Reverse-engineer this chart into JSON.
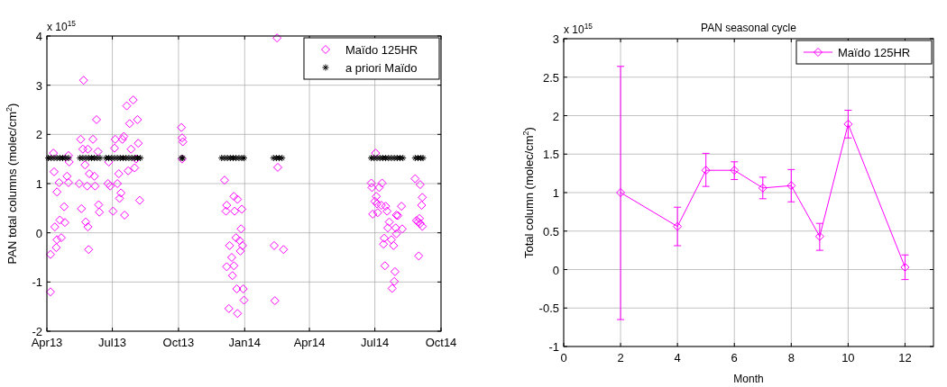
{
  "chart_data": [
    {
      "type": "scatter",
      "ylabel": "PAN total columns (molec/cm$^{2}$)",
      "annotations": [
        "x 10$^{15}$"
      ],
      "xlim": [
        "2013-04-01",
        "2014-10-01"
      ],
      "xticks": [
        {
          "value": "2013-04-01",
          "label": "Apr13"
        },
        {
          "value": "2013-07-01",
          "label": "Jul13"
        },
        {
          "value": "2013-10-01",
          "label": "Oct13"
        },
        {
          "value": "2014-01-01",
          "label": "Jan14"
        },
        {
          "value": "2014-04-01",
          "label": "Apr14"
        },
        {
          "value": "2014-07-01",
          "label": "Jul14"
        },
        {
          "value": "2014-10-01",
          "label": "Oct14"
        }
      ],
      "ylim": [
        -2,
        4
      ],
      "yticks": [
        -2,
        -1,
        0,
        1,
        2,
        3,
        4
      ],
      "grid": true,
      "legend": "top right",
      "series": [
        {
          "name": "Maïdo 125HR",
          "color": "#ff00ff",
          "marker": "diamond",
          "x": [
            "2013-04-06",
            "2013-04-06",
            "2013-04-10",
            "2013-04-11",
            "2013-04-12",
            "2013-04-15",
            "2013-04-14",
            "2013-04-15",
            "2013-04-18",
            "2013-04-19",
            "2013-04-21",
            "2013-04-25",
            "2013-04-26",
            "2013-04-29",
            "2013-05-01",
            "2013-05-02",
            "2013-05-01",
            "2013-05-16",
            "2013-05-18",
            "2013-05-19",
            "2013-05-22",
            "2013-05-21",
            "2013-05-24",
            "2013-05-25",
            "2013-05-27",
            "2013-05-28",
            "2013-05-28",
            "2013-05-29",
            "2013-05-30",
            "2013-06-04",
            "2013-06-06",
            "2013-06-07",
            "2013-06-09",
            "2013-06-11",
            "2013-06-12",
            "2013-06-13",
            "2013-06-25",
            "2013-06-26",
            "2013-06-28",
            "2013-07-02",
            "2013-07-04",
            "2013-07-05",
            "2013-07-08",
            "2013-07-10",
            "2013-07-11",
            "2013-07-13",
            "2013-07-15",
            "2013-07-17",
            "2013-07-18",
            "2013-07-21",
            "2013-07-23",
            "2013-07-25",
            "2013-07-27",
            "2013-07-30",
            "2013-08-01",
            "2013-08-03",
            "2013-08-05",
            "2013-08-06",
            "2013-08-08",
            "2013-10-05",
            "2013-10-06",
            "2013-10-07",
            "2013-10-06",
            "2013-12-04",
            "2013-12-07",
            "2013-12-06",
            "2013-12-17",
            "2013-12-22",
            "2013-12-18",
            "2013-12-28",
            "2013-12-27",
            "2013-12-20",
            "2013-12-25",
            "2013-12-29",
            "2013-12-11",
            "2013-12-26",
            "2013-12-14",
            "2013-12-07",
            "2013-12-17",
            "2013-12-15",
            "2013-12-21",
            "2013-12-30",
            "2013-12-31",
            "2013-12-10",
            "2013-12-22",
            "2014-02-15",
            "2014-02-16",
            "2014-02-11",
            "2014-02-24",
            "2014-02-12",
            "2014-06-26",
            "2014-06-27",
            "2014-07-02",
            "2014-07-03",
            "2014-07-01",
            "2014-07-04",
            "2014-06-28",
            "2014-07-05",
            "2014-07-07",
            "2014-07-11",
            "2014-07-10",
            "2014-07-16",
            "2014-07-18",
            "2014-07-21",
            "2014-07-19",
            "2014-07-14",
            "2014-07-13",
            "2014-07-24",
            "2014-07-27",
            "2014-07-15",
            "2014-07-30",
            "2014-07-31",
            "2014-08-02",
            "2014-07-31",
            "2014-08-08",
            "2014-08-07",
            "2014-07-29",
            "2014-07-28",
            "2014-07-25",
            "2014-08-26",
            "2014-09-02",
            "2014-09-05",
            "2014-09-04",
            "2014-08-28",
            "2014-08-30",
            "2014-09-01",
            "2014-09-02",
            "2014-09-05",
            "2014-08-31"
          ],
          "values": [
            -0.44,
            -1.2,
            1.62,
            1.24,
            0.12,
            0.83,
            -0.3,
            -0.14,
            1.02,
            0.26,
            -0.1,
            0.53,
            0.21,
            1.15,
            1.02,
            1.44,
            1.57,
            1.0,
            1.9,
            0.49,
            3.1,
            1.7,
            1.38,
            0.22,
            0.95,
            1.7,
            0.12,
            -0.34,
            1.2,
            1.9,
            1.15,
            0.95,
            2.3,
            1.65,
            0.57,
            0.42,
            1.0,
            1.44,
            0.95,
            0.44,
            1.72,
            1.9,
            1.0,
            1.2,
            0.7,
            0.81,
            1.9,
            1.96,
            0.36,
            2.58,
            1.26,
            2.22,
            1.7,
            2.7,
            1.32,
            1.5,
            2.3,
            1.82,
            0.66,
            2.14,
            1.93,
            1.85,
            1.5,
            1.07,
            0.56,
            0.44,
            0.74,
            0.68,
            0.44,
            0.48,
            0.08,
            -0.1,
            -0.16,
            -0.26,
            -0.26,
            -0.37,
            -0.5,
            -0.69,
            -0.67,
            -0.87,
            -1.14,
            -1.14,
            -1.37,
            -1.54,
            -1.64,
            3.96,
            1.33,
            -0.26,
            -0.34,
            -1.38,
            1.01,
            0.92,
            1.62,
            0.74,
            0.64,
            0.59,
            0.38,
            0.41,
            0.92,
            1.01,
            0.56,
            0.54,
            0.44,
            0.22,
            0.1,
            -0.11,
            -0.23,
            -0.14,
            -0.26,
            -0.67,
            0.1,
            0.36,
            0.35,
            -0.02,
            0.08,
            0.54,
            -0.79,
            -0.99,
            -1.13,
            1.1,
            0.98,
            0.72,
            0.56,
            0.25,
            0.22,
            0.29,
            0.19,
            0.13,
            -0.47
          ]
        },
        {
          "name": "a priori Maïdo",
          "color": "#000000",
          "marker": "cross",
          "x": [
            "2013-04-03",
            "2013-04-07",
            "2013-04-11",
            "2013-04-15",
            "2013-04-19",
            "2013-04-23",
            "2013-04-27",
            "2013-05-01",
            "2013-05-17",
            "2013-05-21",
            "2013-05-25",
            "2013-05-29",
            "2013-06-02",
            "2013-06-06",
            "2013-06-10",
            "2013-06-14",
            "2013-06-22",
            "2013-06-26",
            "2013-06-30",
            "2013-07-04",
            "2013-07-08",
            "2013-07-12",
            "2013-07-16",
            "2013-07-20",
            "2013-07-24",
            "2013-07-28",
            "2013-08-01",
            "2013-08-05",
            "2013-08-09",
            "2013-10-05",
            "2013-10-07",
            "2013-11-30",
            "2013-12-04",
            "2013-12-08",
            "2013-12-12",
            "2013-12-16",
            "2013-12-20",
            "2013-12-24",
            "2013-12-28",
            "2013-12-31",
            "2014-02-10",
            "2014-02-14",
            "2014-02-18",
            "2014-02-22",
            "2014-06-26",
            "2014-06-30",
            "2014-07-04",
            "2014-07-08",
            "2014-07-12",
            "2014-07-16",
            "2014-07-20",
            "2014-07-24",
            "2014-07-28",
            "2014-08-01",
            "2014-08-05",
            "2014-08-09",
            "2014-08-26",
            "2014-08-30",
            "2014-09-03",
            "2014-09-06"
          ],
          "values": [
            1.52,
            1.52,
            1.52,
            1.52,
            1.52,
            1.52,
            1.52,
            1.52,
            1.52,
            1.52,
            1.52,
            1.52,
            1.52,
            1.52,
            1.52,
            1.52,
            1.52,
            1.52,
            1.52,
            1.52,
            1.52,
            1.52,
            1.52,
            1.52,
            1.52,
            1.52,
            1.52,
            1.52,
            1.52,
            1.52,
            1.52,
            1.52,
            1.52,
            1.52,
            1.52,
            1.52,
            1.52,
            1.52,
            1.52,
            1.52,
            1.52,
            1.52,
            1.52,
            1.52,
            1.52,
            1.52,
            1.52,
            1.52,
            1.52,
            1.52,
            1.52,
            1.52,
            1.52,
            1.52,
            1.52,
            1.52,
            1.52,
            1.52,
            1.52,
            1.52
          ]
        }
      ]
    },
    {
      "type": "line",
      "title": "PAN seasonal cycle",
      "xlabel": "Month",
      "ylabel": "Total column (molec/cm$^{2}$)",
      "annotations": [
        "x 10$^{15}$"
      ],
      "xlim": [
        0,
        13
      ],
      "xticks": [
        0,
        2,
        4,
        6,
        8,
        10,
        12
      ],
      "ylim": [
        -1,
        3
      ],
      "yticks": [
        -1,
        -0.5,
        0,
        0.5,
        1,
        1.5,
        2,
        2.5,
        3
      ],
      "grid": true,
      "legend": "top right",
      "series": [
        {
          "name": "Maïdo 125HR",
          "color": "#ff00ff",
          "marker": "diamond",
          "x": [
            2,
            4,
            5,
            6,
            7,
            8,
            9,
            10,
            12
          ],
          "values": [
            1.0,
            0.56,
            1.29,
            1.29,
            1.06,
            1.09,
            0.43,
            1.89,
            0.03
          ],
          "errors": [
            [
              -0.65,
              2.64
            ],
            [
              0.31,
              0.81
            ],
            [
              1.08,
              1.51
            ],
            [
              1.17,
              1.4
            ],
            [
              0.92,
              1.2
            ],
            [
              0.88,
              1.3
            ],
            [
              0.25,
              0.6
            ],
            [
              1.71,
              2.07
            ],
            [
              -0.13,
              0.19
            ]
          ]
        }
      ]
    }
  ]
}
